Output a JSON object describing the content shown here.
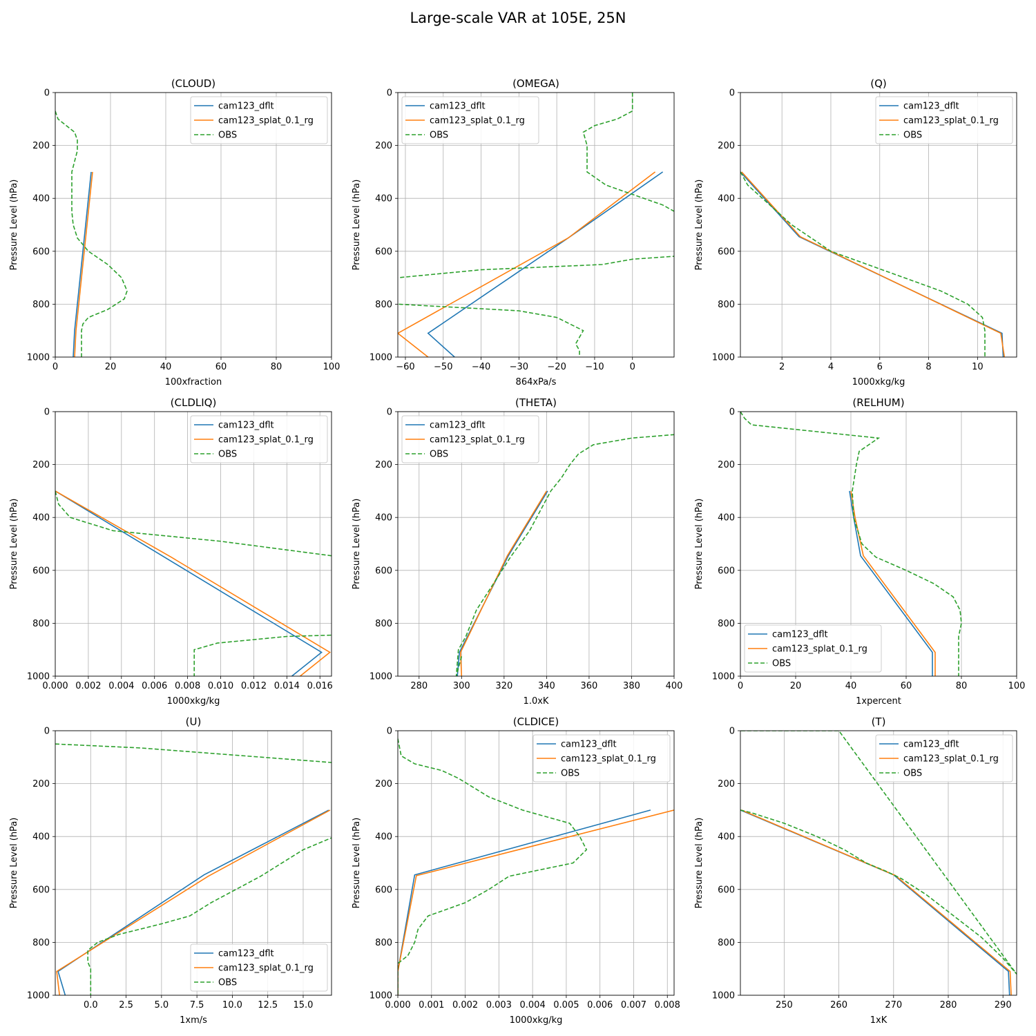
{
  "figure": {
    "title": "Large-scale VAR at 105E, 25N"
  },
  "colors": {
    "dflt": "#1f77b4",
    "splat": "#ff7f0e",
    "obs": "#2ca02c",
    "grid": "#b0b0b0"
  },
  "chart_data": [
    {
      "type": "line",
      "title": "(CLOUD)",
      "xlabel": "100xfraction",
      "ylabel": "Pressure Level (hPa)",
      "xlim": [
        0,
        100
      ],
      "ylim": [
        1000,
        0
      ],
      "y_inverted": true,
      "grid": true,
      "legend_position": "upper-right",
      "xticks": [
        0,
        20,
        40,
        60,
        80,
        100
      ],
      "yticks": [
        0,
        200,
        400,
        600,
        800,
        1000
      ],
      "series": [
        {
          "name": "cam123_dflt",
          "style": "solid",
          "color": "#1f77b4",
          "x": [
            13,
            12,
            11,
            10,
            9,
            8,
            7,
            6.5
          ],
          "y": [
            300,
            400,
            500,
            600,
            700,
            800,
            900,
            1000
          ]
        },
        {
          "name": "cam123_splat_0.1_rg",
          "style": "solid",
          "color": "#ff7f0e",
          "x": [
            13.5,
            12.5,
            11.5,
            10.5,
            9.5,
            8.5,
            7.5,
            7
          ],
          "y": [
            300,
            400,
            500,
            600,
            700,
            800,
            900,
            1000
          ]
        },
        {
          "name": "OBS",
          "style": "dashed",
          "color": "#2ca02c",
          "x": [
            0,
            1,
            4,
            7,
            8,
            8,
            7,
            6,
            6,
            6,
            6,
            6.5,
            8,
            12,
            19,
            24,
            26,
            25,
            19,
            12,
            10,
            9.5,
            9.5,
            9.5,
            9.5
          ],
          "y": [
            70,
            100,
            125,
            150,
            180,
            220,
            260,
            300,
            350,
            400,
            450,
            500,
            550,
            600,
            650,
            700,
            750,
            780,
            820,
            850,
            875,
            900,
            925,
            950,
            1000
          ]
        }
      ]
    },
    {
      "type": "line",
      "title": "(OMEGA)",
      "xlabel": "864xPa/s",
      "ylabel": "Pressure Level (hPa)",
      "xlim": [
        -62,
        11
      ],
      "ylim": [
        1000,
        0
      ],
      "y_inverted": true,
      "grid": true,
      "legend_position": "upper-left",
      "xticks": [
        -60,
        -50,
        -40,
        -30,
        -20,
        -10,
        0
      ],
      "yticks": [
        0,
        200,
        400,
        600,
        800,
        1000
      ],
      "series": [
        {
          "name": "cam123_dflt",
          "style": "solid",
          "color": "#1f77b4",
          "x": [
            8,
            -17,
            -54,
            -47
          ],
          "y": [
            300,
            550,
            910,
            1000
          ]
        },
        {
          "name": "cam123_splat_0.1_rg",
          "style": "solid",
          "color": "#ff7f0e",
          "x": [
            6,
            -17,
            -62,
            -54
          ],
          "y": [
            300,
            550,
            910,
            1000
          ]
        },
        {
          "name": "OBS",
          "style": "dashed",
          "color": "#2ca02c",
          "x": [
            0,
            0,
            -4,
            -10,
            -13,
            -12,
            -12,
            -12,
            -7,
            8,
            30,
            0,
            -8,
            -40,
            -62,
            -70,
            -62,
            -30,
            -20,
            -13,
            -15,
            -14,
            -14
          ],
          "y": [
            0,
            70,
            100,
            125,
            150,
            200,
            250,
            300,
            350,
            425,
            600,
            630,
            650,
            670,
            700,
            725,
            800,
            825,
            850,
            900,
            950,
            975,
            1000
          ]
        }
      ]
    },
    {
      "type": "line",
      "title": "(Q)",
      "xlabel": "1000xkg/kg",
      "ylabel": "Pressure Level (hPa)",
      "xlim": [
        0.3,
        11.6
      ],
      "ylim": [
        1000,
        0
      ],
      "y_inverted": true,
      "grid": true,
      "legend_position": "upper-right",
      "xticks": [
        2,
        4,
        6,
        8,
        10
      ],
      "yticks": [
        0,
        200,
        400,
        600,
        800,
        1000
      ],
      "series": [
        {
          "name": "cam123_dflt",
          "style": "solid",
          "color": "#1f77b4",
          "x": [
            0.3,
            2.7,
            11,
            11.05
          ],
          "y": [
            300,
            545,
            910,
            1000
          ]
        },
        {
          "name": "cam123_splat_0.1_rg",
          "style": "solid",
          "color": "#ff7f0e",
          "x": [
            0.35,
            2.75,
            10.95,
            11.1
          ],
          "y": [
            300,
            545,
            910,
            1000
          ]
        },
        {
          "name": "OBS",
          "style": "dashed",
          "color": "#2ca02c",
          "x": [
            0.3,
            0.6,
            1.2,
            2.4,
            4.0,
            5.5,
            7.0,
            8.5,
            9.6,
            10.2,
            10.3,
            10.3,
            10.3
          ],
          "y": [
            300,
            350,
            400,
            500,
            600,
            650,
            700,
            750,
            800,
            850,
            900,
            950,
            1000
          ]
        }
      ]
    },
    {
      "type": "line",
      "title": "(CLDLIQ)",
      "xlabel": "1000xkg/kg",
      "ylabel": "Pressure Level (hPa)",
      "xlim": [
        0,
        0.0167
      ],
      "ylim": [
        1000,
        0
      ],
      "y_inverted": true,
      "grid": true,
      "legend_position": "upper-right",
      "xticks": [
        0.0,
        0.002,
        0.004,
        0.006,
        0.008,
        0.01,
        0.012,
        0.014,
        0.016
      ],
      "xtick_labels": [
        "0.000",
        "0.002",
        "0.004",
        "0.006",
        "0.008",
        "0.010",
        "0.012",
        "0.014",
        "0.016"
      ],
      "yticks": [
        0,
        200,
        400,
        600,
        800,
        1000
      ],
      "series": [
        {
          "name": "cam123_dflt",
          "style": "solid",
          "color": "#1f77b4",
          "x": [
            0,
            0.0161,
            0.0143
          ],
          "y": [
            300,
            910,
            1000
          ]
        },
        {
          "name": "cam123_splat_0.1_rg",
          "style": "solid",
          "color": "#ff7f0e",
          "x": [
            0,
            0.007,
            0.0166,
            0.0148
          ],
          "y": [
            300,
            550,
            910,
            1000
          ]
        },
        {
          "name": "OBS",
          "style": "dashed",
          "color": "#2ca02c",
          "x": [
            0,
            0.0002,
            0.0009,
            0.0035,
            0.01,
            0.0167,
            0.03,
            0.03,
            0.0167,
            0.014,
            0.0098,
            0.0084,
            0.0084,
            0.0084
          ],
          "y": [
            300,
            350,
            400,
            450,
            490,
            545,
            600,
            845,
            845,
            850,
            875,
            900,
            950,
            1000
          ]
        }
      ]
    },
    {
      "type": "line",
      "title": "(THETA)",
      "xlabel": "1.0xK",
      "ylabel": "Pressure Level (hPa)",
      "xlim": [
        270,
        400
      ],
      "ylim": [
        1000,
        0
      ],
      "y_inverted": true,
      "grid": true,
      "legend_position": "upper-left",
      "xticks": [
        280,
        300,
        320,
        340,
        360,
        380,
        400
      ],
      "yticks": [
        0,
        200,
        400,
        600,
        800,
        1000
      ],
      "series": [
        {
          "name": "cam123_dflt",
          "style": "solid",
          "color": "#1f77b4",
          "x": [
            340.5,
            322,
            299,
            298
          ],
          "y": [
            300,
            545,
            910,
            1000
          ]
        },
        {
          "name": "cam123_splat_0.1_rg",
          "style": "solid",
          "color": "#ff7f0e",
          "x": [
            340,
            321.5,
            299.5,
            300
          ],
          "y": [
            300,
            545,
            910,
            1000
          ]
        },
        {
          "name": "OBS",
          "style": "dashed",
          "color": "#2ca02c",
          "x": [
            300,
            297.5,
            298.5,
            302,
            307,
            315,
            323,
            332,
            342,
            347,
            351,
            355,
            362,
            380,
            400
          ],
          "y": [
            925,
            1000,
            900,
            850,
            750,
            650,
            550,
            450,
            300,
            250,
            200,
            160,
            125,
            100,
            87
          ]
        }
      ]
    },
    {
      "type": "line",
      "title": "(RELHUM)",
      "xlabel": "1xpercent",
      "ylabel": "Pressure Level (hPa)",
      "xlim": [
        0,
        100
      ],
      "ylim": [
        1000,
        0
      ],
      "y_inverted": true,
      "grid": true,
      "legend_position": "lower-left",
      "xticks": [
        0,
        20,
        40,
        60,
        80,
        100
      ],
      "yticks": [
        0,
        200,
        400,
        600,
        800,
        1000
      ],
      "series": [
        {
          "name": "cam123_dflt",
          "style": "solid",
          "color": "#1f77b4",
          "x": [
            39.5,
            41,
            43.5,
            69.5,
            69.5
          ],
          "y": [
            300,
            400,
            545,
            910,
            1000
          ]
        },
        {
          "name": "cam123_splat_0.1_rg",
          "style": "solid",
          "color": "#ff7f0e",
          "x": [
            40,
            41.5,
            44.5,
            70.5,
            70.5
          ],
          "y": [
            300,
            400,
            545,
            910,
            1000
          ]
        },
        {
          "name": "OBS",
          "style": "dashed",
          "color": "#2ca02c",
          "x": [
            0,
            1.5,
            4,
            50,
            43,
            42,
            40.5,
            41,
            44,
            49,
            60,
            70,
            77,
            79.5,
            80,
            79,
            79,
            79
          ],
          "y": [
            0,
            25,
            50,
            100,
            150,
            200,
            300,
            400,
            500,
            550,
            600,
            650,
            700,
            750,
            800,
            850,
            900,
            1000
          ]
        }
      ]
    },
    {
      "type": "line",
      "title": "(U)",
      "xlabel": "1xm/s",
      "ylabel": "Pressure Level (hPa)",
      "xlim": [
        -2.5,
        17
      ],
      "ylim": [
        1000,
        0
      ],
      "y_inverted": true,
      "grid": true,
      "legend_position": "lower-right",
      "xticks": [
        0.0,
        2.5,
        5.0,
        7.5,
        10.0,
        12.5,
        15.0
      ],
      "xtick_labels": [
        "0.0",
        "2.5",
        "5.0",
        "7.5",
        "10.0",
        "12.5",
        "15.0"
      ],
      "yticks": [
        0,
        200,
        400,
        600,
        800,
        1000
      ],
      "series": [
        {
          "name": "cam123_dflt",
          "style": "solid",
          "color": "#1f77b4",
          "x": [
            16.8,
            8,
            -2.3,
            -1.8
          ],
          "y": [
            300,
            545,
            910,
            1000
          ]
        },
        {
          "name": "cam123_splat_0.1_rg",
          "style": "solid",
          "color": "#ff7f0e",
          "x": [
            16.9,
            8.3,
            -2.4,
            -2.2
          ],
          "y": [
            300,
            550,
            910,
            1000
          ]
        },
        {
          "name": "OBS",
          "style": "dashed",
          "color": "#2ca02c",
          "x": [
            -2.5,
            3.5,
            17,
            30,
            30,
            17,
            15,
            12,
            8.5,
            7,
            5,
            2,
            0.5,
            -0.2,
            -0.2,
            0,
            0,
            0,
            0
          ],
          "y": [
            50,
            65,
            120,
            150,
            350,
            405,
            450,
            550,
            650,
            700,
            730,
            770,
            800,
            830,
            875,
            900,
            925,
            950,
            1000
          ]
        }
      ]
    },
    {
      "type": "line",
      "title": "(CLDICE)",
      "xlabel": "1000xkg/kg",
      "ylabel": "Pressure Level (hPa)",
      "xlim": [
        0,
        0.0082
      ],
      "ylim": [
        1000,
        0
      ],
      "y_inverted": true,
      "grid": true,
      "legend_position": "upper-right",
      "xticks": [
        0.0,
        0.001,
        0.002,
        0.003,
        0.004,
        0.005,
        0.006,
        0.007,
        0.008
      ],
      "xtick_labels": [
        "0.000",
        "0.001",
        "0.002",
        "0.003",
        "0.004",
        "0.005",
        "0.006",
        "0.007",
        "0.008"
      ],
      "yticks": [
        0,
        200,
        400,
        600,
        800,
        1000
      ],
      "series": [
        {
          "name": "cam123_dflt",
          "style": "solid",
          "color": "#1f77b4",
          "x": [
            0.0075,
            0.0005,
            0,
            0
          ],
          "y": [
            300,
            545,
            910,
            1000
          ]
        },
        {
          "name": "cam123_splat_0.1_rg",
          "style": "solid",
          "color": "#ff7f0e",
          "x": [
            0.0082,
            0.00055,
            0,
            0
          ],
          "y": [
            300,
            548,
            910,
            1000
          ]
        },
        {
          "name": "OBS",
          "style": "dashed",
          "color": "#2ca02c",
          "x": [
            0,
            0.0001,
            0.0005,
            0.0013,
            0.0018,
            0.0027,
            0.0037,
            0.0051,
            0.0054,
            0.0056,
            0.0052,
            0.0033,
            0.0027,
            0.002,
            0.0009,
            0.0006,
            0.0005,
            0.0003,
            0,
            0
          ],
          "y": [
            30,
            95,
            125,
            150,
            180,
            250,
            300,
            350,
            400,
            450,
            500,
            550,
            600,
            650,
            700,
            750,
            800,
            850,
            880,
            1000
          ]
        }
      ]
    },
    {
      "type": "line",
      "title": "(T)",
      "xlabel": "1xK",
      "ylabel": "Pressure Level (hPa)",
      "xlim": [
        242,
        292.5
      ],
      "ylim": [
        1000,
        0
      ],
      "y_inverted": true,
      "grid": true,
      "legend_position": "upper-right",
      "xticks": [
        250,
        260,
        270,
        280,
        290
      ],
      "yticks": [
        0,
        200,
        400,
        600,
        800,
        1000
      ],
      "series": [
        {
          "name": "cam123_dflt",
          "style": "solid",
          "color": "#1f77b4",
          "x": [
            242,
            270,
            291,
            291.2
          ],
          "y": [
            300,
            545,
            910,
            1000
          ]
        },
        {
          "name": "cam123_splat_0.1_rg",
          "style": "solid",
          "color": "#ff7f0e",
          "x": [
            242.2,
            270.3,
            291.3,
            291.5
          ],
          "y": [
            300,
            547,
            910,
            1000
          ]
        },
        {
          "name": "OBS",
          "style": "dashed",
          "color": "#2ca02c",
          "x": [
            242,
            244,
            250,
            256,
            261,
            265,
            268.5,
            270,
            271.5,
            276,
            281,
            286,
            290,
            292.5,
            260,
            241
          ],
          "y": [
            300,
            310,
            350,
            400,
            450,
            500,
            530,
            545,
            560,
            620,
            700,
            780,
            860,
            920,
            0,
            0
          ]
        }
      ]
    }
  ]
}
